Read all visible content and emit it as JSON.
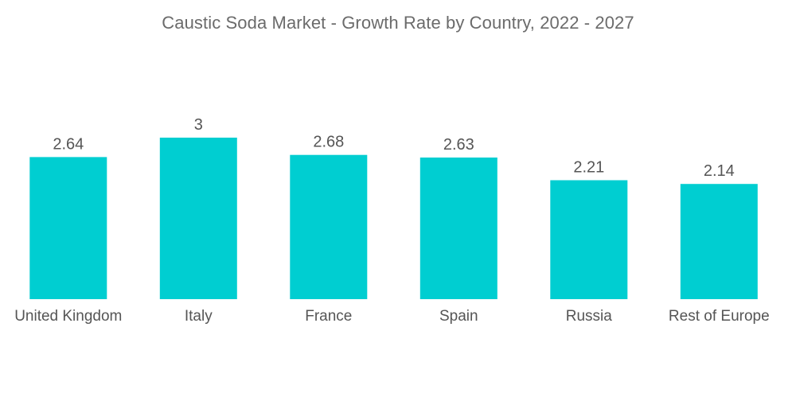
{
  "chart_data": {
    "type": "bar",
    "title": "Caustic Soda Market - Growth Rate by Country, 2022 - 2027",
    "categories": [
      "United Kingdom",
      "Italy",
      "France",
      "Spain",
      "Russia",
      "Rest of Europe"
    ],
    "values": [
      2.64,
      3,
      2.68,
      2.63,
      2.21,
      2.14
    ],
    "value_labels": [
      "2.64",
      "3",
      "2.68",
      "2.63",
      "2.21",
      "2.14"
    ],
    "xlabel": "",
    "ylabel": "",
    "ylim": [
      0,
      3
    ],
    "grid": false,
    "legend": "none",
    "colors": {
      "bar": "#00CED1",
      "label": "#555555",
      "title": "#6b6b6b"
    }
  }
}
